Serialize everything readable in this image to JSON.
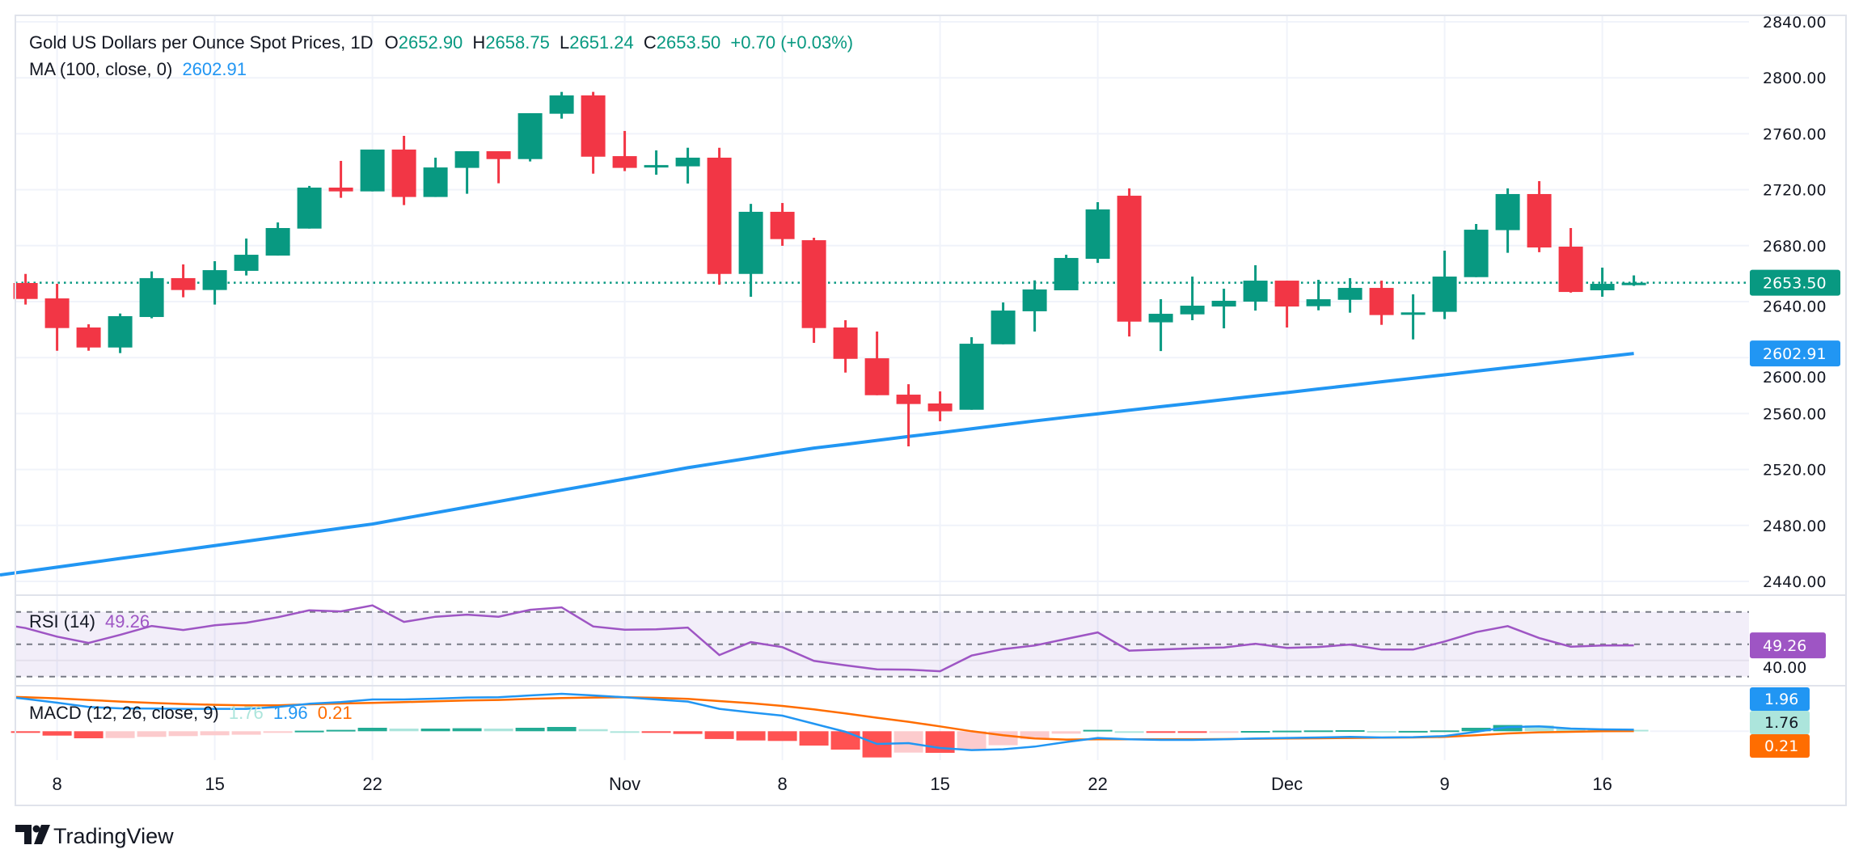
{
  "header": {
    "title": "Gold US Dollars per Ounce Spot Prices, 1D",
    "o_label": "O",
    "o": "2652.90",
    "h_label": "H",
    "h": "2658.75",
    "l_label": "L",
    "l": "2651.24",
    "c_label": "C",
    "c": "2653.50",
    "change": "+0.70 (+0.03%)"
  },
  "ma_legend": {
    "label": "MA (100, close, 0)",
    "value": "2602.91"
  },
  "rsi_legend": {
    "label": "RSI (14)",
    "value": "49.26"
  },
  "macd_legend": {
    "label": "MACD (12, 26, close, 9)",
    "hist": "1.76",
    "macd": "1.96",
    "signal": "0.21"
  },
  "badges": {
    "price": "2653.50",
    "ma": "2602.91",
    "rsi": "49.26",
    "macd": "1.96",
    "hist": "1.76",
    "signal": "0.21"
  },
  "rsi_axis_label": "40.00",
  "brand": "TradingView",
  "colors": {
    "up": "#089981",
    "down": "#f23645",
    "ma": "#2196f3",
    "rsi": "#9e55c4",
    "macd": "#2196f3",
    "signal": "#ff6d00",
    "hist_up_strong": "#22ab94",
    "hist_up_weak": "#ace5dc",
    "hist_down_strong": "#ff5252",
    "hist_down_weak": "#fccbcd"
  },
  "chart_data": [
    {
      "type": "candlestick",
      "title": "Gold US Dollars per Ounce Spot Prices, 1D",
      "ylim": [
        2430,
        2845
      ],
      "y_ticks": [
        "2840.00",
        "2800.00",
        "2760.00",
        "2720.00",
        "2680.00",
        "2640.00",
        "2600.00",
        "2560.00",
        "2520.00",
        "2480.00",
        "2440.00"
      ],
      "x_ticks": [
        {
          "label": "8",
          "date": "Oct 8"
        },
        {
          "label": "15",
          "date": "Oct 15"
        },
        {
          "label": "22",
          "date": "Oct 22"
        },
        {
          "label": "Nov",
          "date": "Nov 1"
        },
        {
          "label": "8",
          "date": "Nov 8"
        },
        {
          "label": "15",
          "date": "Nov 15"
        },
        {
          "label": "22",
          "date": "Nov 22"
        },
        {
          "label": "Dec",
          "date": "Dec 2"
        },
        {
          "label": "9",
          "date": "Dec 9"
        },
        {
          "label": "16",
          "date": "Dec 16"
        }
      ],
      "grid": true,
      "last_price": 2653.5,
      "candles": [
        {
          "d": "Oct 7",
          "o": 2653.3,
          "h": 2659.8,
          "l": 2637.9,
          "c": 2641.9
        },
        {
          "d": "Oct 8",
          "o": 2642.3,
          "h": 2652.7,
          "l": 2604.9,
          "c": 2621.1
        },
        {
          "d": "Oct 9",
          "o": 2621.5,
          "h": 2623.8,
          "l": 2604.9,
          "c": 2607.2
        },
        {
          "d": "Oct 10",
          "o": 2607.2,
          "h": 2631.5,
          "l": 2603.2,
          "c": 2629.6
        },
        {
          "d": "Oct 11",
          "o": 2629.0,
          "h": 2661.6,
          "l": 2628.1,
          "c": 2656.8
        },
        {
          "d": "Oct 14",
          "o": 2656.8,
          "h": 2666.6,
          "l": 2643.1,
          "c": 2648.3
        },
        {
          "d": "Oct 15",
          "o": 2648.3,
          "h": 2668.9,
          "l": 2637.9,
          "c": 2662.5
        },
        {
          "d": "Oct 16",
          "o": 2662.0,
          "h": 2685.1,
          "l": 2658.7,
          "c": 2673.5
        },
        {
          "d": "Oct 17",
          "o": 2672.9,
          "h": 2696.6,
          "l": 2672.9,
          "c": 2692.6
        },
        {
          "d": "Oct 18",
          "o": 2692.2,
          "h": 2722.7,
          "l": 2692.2,
          "c": 2721.5
        },
        {
          "d": "Oct 21",
          "o": 2721.5,
          "h": 2740.6,
          "l": 2714.2,
          "c": 2718.8
        },
        {
          "d": "Oct 22",
          "o": 2718.8,
          "h": 2748.7,
          "l": 2718.8,
          "c": 2748.7
        },
        {
          "d": "Oct 23",
          "o": 2748.7,
          "h": 2758.5,
          "l": 2709.0,
          "c": 2714.8
        },
        {
          "d": "Oct 24",
          "o": 2714.8,
          "h": 2742.9,
          "l": 2714.8,
          "c": 2735.9
        },
        {
          "d": "Oct 25",
          "o": 2735.6,
          "h": 2747.5,
          "l": 2717.1,
          "c": 2747.5
        },
        {
          "d": "Oct 28",
          "o": 2747.5,
          "h": 2747.5,
          "l": 2724.6,
          "c": 2741.9
        },
        {
          "d": "Oct 29",
          "o": 2741.9,
          "h": 2774.7,
          "l": 2740.2,
          "c": 2774.7
        },
        {
          "d": "Oct 30",
          "o": 2774.3,
          "h": 2789.9,
          "l": 2770.8,
          "c": 2787.4
        },
        {
          "d": "Oct 31",
          "o": 2787.4,
          "h": 2789.9,
          "l": 2731.5,
          "c": 2743.6
        },
        {
          "d": "Nov 1",
          "o": 2744.0,
          "h": 2762.0,
          "l": 2733.3,
          "c": 2735.6
        },
        {
          "d": "Nov 4",
          "o": 2737.0,
          "h": 2748.1,
          "l": 2730.7,
          "c": 2737.6
        },
        {
          "d": "Nov 5",
          "o": 2736.7,
          "h": 2750.0,
          "l": 2724.4,
          "c": 2742.9
        },
        {
          "d": "Nov 6",
          "o": 2742.9,
          "h": 2750.0,
          "l": 2652.1,
          "c": 2659.8
        },
        {
          "d": "Nov 7",
          "o": 2659.8,
          "h": 2709.9,
          "l": 2643.5,
          "c": 2704.2
        },
        {
          "d": "Nov 8",
          "o": 2704.2,
          "h": 2710.5,
          "l": 2679.9,
          "c": 2684.7
        },
        {
          "d": "Nov 11",
          "o": 2683.9,
          "h": 2685.7,
          "l": 2610.5,
          "c": 2621.1
        },
        {
          "d": "Nov 12",
          "o": 2621.5,
          "h": 2626.7,
          "l": 2589.3,
          "c": 2599.1
        },
        {
          "d": "Nov 13",
          "o": 2599.5,
          "h": 2618.6,
          "l": 2573.1,
          "c": 2573.1
        },
        {
          "d": "Nov 14",
          "o": 2573.5,
          "h": 2581.0,
          "l": 2536.5,
          "c": 2566.8
        },
        {
          "d": "Nov 15",
          "o": 2567.2,
          "h": 2575.8,
          "l": 2554.5,
          "c": 2561.6
        },
        {
          "d": "Nov 18",
          "o": 2562.7,
          "h": 2614.6,
          "l": 2562.7,
          "c": 2609.9
        },
        {
          "d": "Nov 19",
          "o": 2609.5,
          "h": 2639.4,
          "l": 2609.5,
          "c": 2633.6
        },
        {
          "d": "Nov 20",
          "o": 2633.1,
          "h": 2655.2,
          "l": 2618.6,
          "c": 2648.7
        },
        {
          "d": "Nov 21",
          "o": 2648.1,
          "h": 2673.5,
          "l": 2648.1,
          "c": 2671.2
        },
        {
          "d": "Nov 22",
          "o": 2670.6,
          "h": 2711.1,
          "l": 2667.7,
          "c": 2705.9
        },
        {
          "d": "Nov 25",
          "o": 2715.7,
          "h": 2720.9,
          "l": 2615.1,
          "c": 2625.7
        },
        {
          "d": "Nov 26",
          "o": 2625.2,
          "h": 2641.7,
          "l": 2604.7,
          "c": 2631.3
        },
        {
          "d": "Nov 27",
          "o": 2630.9,
          "h": 2657.9,
          "l": 2626.7,
          "c": 2637.1
        },
        {
          "d": "Nov 28",
          "o": 2636.5,
          "h": 2649.2,
          "l": 2620.9,
          "c": 2640.6
        },
        {
          "d": "Nov 29",
          "o": 2640.0,
          "h": 2666.0,
          "l": 2633.6,
          "c": 2655.0
        },
        {
          "d": "Dec 2",
          "o": 2655.0,
          "h": 2655.0,
          "l": 2621.5,
          "c": 2636.5
        },
        {
          "d": "Dec 3",
          "o": 2636.7,
          "h": 2655.6,
          "l": 2633.8,
          "c": 2641.7
        },
        {
          "d": "Dec 4",
          "o": 2641.3,
          "h": 2656.8,
          "l": 2632.1,
          "c": 2649.8
        },
        {
          "d": "Dec 5",
          "o": 2649.8,
          "h": 2655.0,
          "l": 2623.4,
          "c": 2630.4
        },
        {
          "d": "Dec 6",
          "o": 2632.1,
          "h": 2645.2,
          "l": 2613.0,
          "c": 2632.3
        },
        {
          "d": "Dec 9",
          "o": 2632.7,
          "h": 2676.4,
          "l": 2627.5,
          "c": 2657.9
        },
        {
          "d": "Dec 10",
          "o": 2657.5,
          "h": 2695.5,
          "l": 2657.5,
          "c": 2691.4
        },
        {
          "d": "Dec 11",
          "o": 2691.1,
          "h": 2720.9,
          "l": 2674.9,
          "c": 2716.9
        },
        {
          "d": "Dec 12",
          "o": 2716.9,
          "h": 2726.1,
          "l": 2675.3,
          "c": 2678.7
        },
        {
          "d": "Dec 13",
          "o": 2679.3,
          "h": 2692.6,
          "l": 2646.4,
          "c": 2646.9
        },
        {
          "d": "Dec 16",
          "o": 2648.1,
          "h": 2664.3,
          "l": 2643.5,
          "c": 2652.7
        },
        {
          "d": "Dec 17",
          "o": 2652.9,
          "h": 2658.75,
          "l": 2651.24,
          "c": 2653.5
        }
      ],
      "ma100": [
        2447.1,
        2450.2,
        2453.3,
        2456.4,
        2459.4,
        2462.5,
        2465.6,
        2468.7,
        2471.8,
        2474.9,
        2478.0,
        2481.0,
        2485.1,
        2489.1,
        2493.1,
        2497.1,
        2501.2,
        2505.2,
        2509.2,
        2513.2,
        2517.2,
        2521.3,
        2524.8,
        2528.3,
        2531.9,
        2535.3,
        2538.0,
        2540.8,
        2543.6,
        2546.3,
        2549.1,
        2551.9,
        2554.7,
        2557.3,
        2559.8,
        2562.4,
        2564.9,
        2567.4,
        2570.0,
        2572.5,
        2575.0,
        2577.6,
        2580.1,
        2582.7,
        2585.2,
        2587.7,
        2590.3,
        2592.8,
        2595.3,
        2597.9,
        2600.4,
        2602.91
      ]
    },
    {
      "type": "line",
      "title": "RSI (14)",
      "ylim": [
        25,
        77
      ],
      "levels": [
        70,
        50,
        30
      ],
      "values": [
        60,
        54.7,
        50.8,
        55.8,
        61.3,
        58.8,
        61.7,
        63.3,
        66.7,
        71,
        70.3,
        74,
        63.8,
        67,
        68.3,
        67,
        71.3,
        72.8,
        61,
        59,
        59.2,
        60.3,
        43.3,
        51.3,
        48.2,
        39.7,
        37,
        34.5,
        34.3,
        33.3,
        43,
        47,
        49.2,
        53.3,
        57.3,
        46,
        46.7,
        47.5,
        48,
        50.3,
        47.7,
        48.3,
        49.8,
        46.7,
        46.7,
        51.7,
        57.5,
        61.2,
        53.8,
        48.5,
        49.2,
        49.26
      ]
    },
    {
      "type": "bar+line",
      "title": "MACD (12, 26, close, 9)",
      "macd": [
        40,
        35.3,
        30,
        28.3,
        28,
        27.7,
        27.7,
        27.7,
        30,
        34,
        36,
        39.3,
        39.3,
        40.3,
        41.7,
        42,
        44.3,
        46.3,
        44.3,
        42,
        39.3,
        36.7,
        27.7,
        23.3,
        19.3,
        9.3,
        -0.7,
        -15.7,
        -14.7,
        -20.7,
        -23.3,
        -22.3,
        -19,
        -13.3,
        -8.3,
        -10,
        -10.7,
        -10.7,
        -10,
        -9,
        -8.3,
        -7.7,
        -7,
        -7.7,
        -7.3,
        -6,
        -0.7,
        5,
        6,
        3.3,
        2.3,
        1.96
      ],
      "signal": [
        42,
        40.7,
        38.7,
        36.7,
        35,
        33.7,
        32.7,
        32,
        32,
        33.3,
        34.3,
        35,
        36,
        37,
        38,
        38.7,
        40,
        41,
        41.7,
        42,
        41.3,
        40,
        37.3,
        34.7,
        31.3,
        27,
        22,
        16.7,
        11.7,
        6,
        0,
        -5,
        -9,
        -10.3,
        -10,
        -10,
        -10,
        -10,
        -9.7,
        -9.3,
        -9,
        -8.7,
        -8.3,
        -8,
        -7.7,
        -7,
        -5,
        -2.7,
        -1.3,
        -0.7,
        0,
        0.21
      ],
      "histogram": [
        -2,
        -5.4,
        -8.7,
        -8.4,
        -7,
        -6,
        -5,
        -4.3,
        -2,
        0.7,
        1.7,
        4.3,
        3.3,
        3.3,
        3.7,
        3.3,
        4.3,
        5.3,
        2.6,
        0,
        -2,
        -3.3,
        -9.6,
        -11.4,
        -12,
        -17.7,
        -22.7,
        -32.4,
        -26.4,
        -26.7,
        -23.3,
        -17.3,
        -10,
        -3,
        1.7,
        0,
        -0.7,
        -0.7,
        -0.3,
        0.3,
        0.7,
        1,
        1.3,
        0.3,
        0.4,
        1,
        4.3,
        7.7,
        7.3,
        4,
        2.3,
        1.76
      ]
    }
  ]
}
